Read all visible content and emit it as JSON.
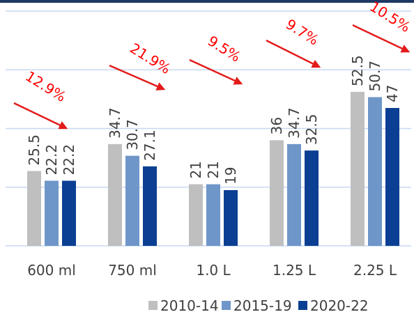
{
  "chart_data": {
    "type": "bar",
    "categories": [
      "600 ml",
      "750 ml",
      "1.0 L",
      "1.25 L",
      "2.25 L"
    ],
    "series": [
      {
        "name": "2010-14",
        "color": "#bfbfbf",
        "values": [
          25.5,
          34.7,
          21.0,
          36.0,
          52.5
        ]
      },
      {
        "name": "2015-19",
        "color": "#6f96c8",
        "values": [
          22.2,
          30.7,
          21.0,
          34.7,
          50.7
        ]
      },
      {
        "name": "2020-22",
        "color": "#0b3f93",
        "values": [
          22.2,
          27.1,
          19.0,
          32.5,
          47.0
        ]
      }
    ],
    "annotations": [
      "12.9%",
      "21.9%",
      "9.5%",
      "9.7%",
      "10.5%"
    ],
    "annotation_color": "#ff0000",
    "ylim": [
      0,
      80
    ],
    "yticks": [
      0,
      20,
      40,
      60,
      80
    ],
    "grid": true,
    "legend": "bottom"
  }
}
